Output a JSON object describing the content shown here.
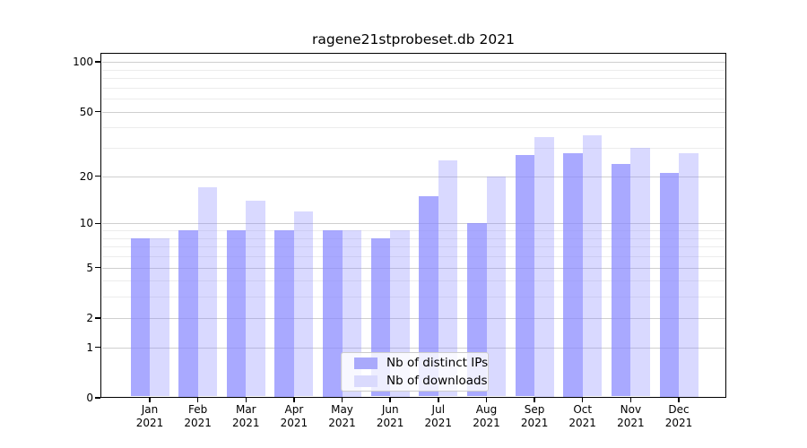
{
  "chart_data": {
    "type": "bar",
    "title": "ragene21stprobeset.db 2021",
    "categories": [
      "Jan 2021",
      "Feb 2021",
      "Mar 2021",
      "Apr 2021",
      "May 2021",
      "Jun 2021",
      "Jul 2021",
      "Aug 2021",
      "Sep 2021",
      "Oct 2021",
      "Nov 2021",
      "Dec 2021"
    ],
    "series": [
      {
        "name": "Nb of distinct IPs",
        "color": "rgba(136,136,255,0.72)",
        "swatch": "#a9a9fb",
        "values": [
          8,
          9,
          9,
          9,
          9,
          8,
          15,
          10,
          27,
          28,
          24,
          21
        ]
      },
      {
        "name": "Nb of downloads",
        "color": "rgba(136,136,255,0.32)",
        "swatch": "#dadafd",
        "values": [
          8,
          17,
          14,
          12,
          9,
          9,
          25,
          20,
          35,
          36,
          30,
          28
        ]
      }
    ],
    "xlabel": "",
    "ylabel": "",
    "yscale": "log10(1+y)",
    "ylim": [
      0,
      112
    ],
    "y_major_ticks": [
      100,
      50,
      20,
      10,
      5,
      2,
      1,
      0
    ],
    "y_minor_ticks": [
      90,
      80,
      70,
      60,
      40,
      30,
      9,
      8,
      7,
      6,
      4,
      3
    ],
    "grid": "horizontal",
    "legend": {
      "position": "lower center",
      "entries": [
        "Nb of distinct IPs",
        "Nb of downloads"
      ]
    }
  },
  "colors": {
    "axis": "#000000",
    "major_grid": "#cfcfcf",
    "minor_grid": "#ececec",
    "background": "#ffffff",
    "legend_border": "#cccccc"
  }
}
